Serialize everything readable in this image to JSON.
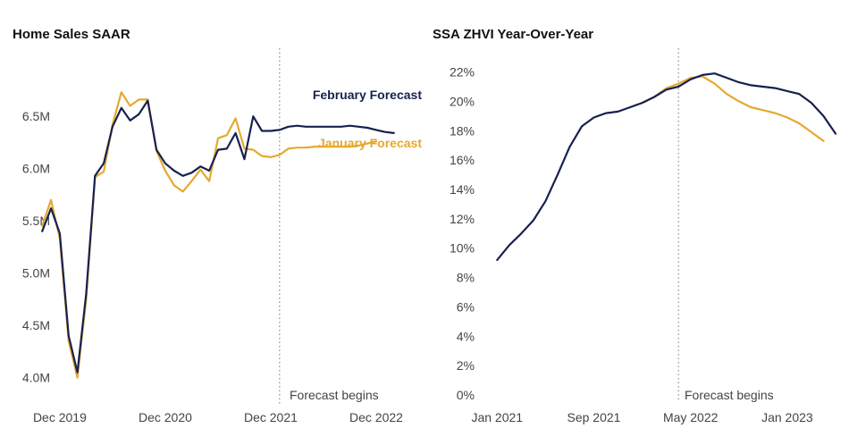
{
  "colors": {
    "february": "#17214f",
    "january": "#e5a92f",
    "forecast_line": "#8a8a8a",
    "axis": "#555555"
  },
  "chart_data": [
    {
      "type": "line",
      "title": "Home Sales SAAR",
      "xlabel": "",
      "ylabel": "",
      "x_ticks": [
        {
          "label": "Dec 2019",
          "x": 0
        },
        {
          "label": "Dec 2020",
          "x": 12
        },
        {
          "label": "Dec 2021",
          "x": 24
        },
        {
          "label": "Dec 2022",
          "x": 36
        }
      ],
      "y_ticks": [
        {
          "label": "4.0M",
          "y": 4.0
        },
        {
          "label": "4.5M",
          "y": 4.5
        },
        {
          "label": "5.0M",
          "y": 5.0
        },
        {
          "label": "5.5M",
          "y": 5.5
        },
        {
          "label": "6.0M",
          "y": 6.0
        },
        {
          "label": "6.5M",
          "y": 6.5
        }
      ],
      "xlim": [
        -0.5,
        42
      ],
      "ylim": [
        3.8,
        6.98
      ],
      "grid": false,
      "forecast_start_x": 25,
      "forecast_label": "Forecast begins",
      "series": [
        {
          "name": "February Forecast",
          "color_key": "february",
          "points": [
            [
              -2,
              5.4
            ],
            [
              -1,
              5.62
            ],
            [
              0,
              5.38
            ],
            [
              1,
              4.4
            ],
            [
              2,
              4.05
            ],
            [
              3,
              4.8
            ],
            [
              4,
              5.93
            ],
            [
              5,
              6.05
            ],
            [
              6,
              6.4
            ],
            [
              7,
              6.58
            ],
            [
              8,
              6.46
            ],
            [
              9,
              6.52
            ],
            [
              10,
              6.65
            ],
            [
              11,
              6.18
            ],
            [
              12,
              6.05
            ],
            [
              13,
              5.98
            ],
            [
              14,
              5.93
            ],
            [
              15,
              5.96
            ],
            [
              16,
              6.02
            ],
            [
              17,
              5.98
            ],
            [
              18,
              6.18
            ],
            [
              19,
              6.19
            ],
            [
              20,
              6.34
            ],
            [
              21,
              6.09
            ],
            [
              22,
              6.5
            ],
            [
              23,
              6.36
            ],
            [
              24,
              6.36
            ],
            [
              25,
              6.37
            ],
            [
              26,
              6.4
            ],
            [
              27,
              6.41
            ],
            [
              28,
              6.4
            ],
            [
              29,
              6.4
            ],
            [
              30,
              6.4
            ],
            [
              31,
              6.4
            ],
            [
              32,
              6.4
            ],
            [
              33,
              6.41
            ],
            [
              34,
              6.4
            ],
            [
              35,
              6.39
            ],
            [
              36,
              6.37
            ],
            [
              37,
              6.35
            ],
            [
              38,
              6.34
            ]
          ]
        },
        {
          "name": "January Forecast",
          "color_key": "january",
          "points": [
            [
              -2,
              5.45
            ],
            [
              -1,
              5.7
            ],
            [
              0,
              5.33
            ],
            [
              1,
              4.35
            ],
            [
              2,
              4.0
            ],
            [
              3,
              4.75
            ],
            [
              4,
              5.92
            ],
            [
              5,
              5.97
            ],
            [
              6,
              6.42
            ],
            [
              7,
              6.73
            ],
            [
              8,
              6.6
            ],
            [
              9,
              6.66
            ],
            [
              10,
              6.66
            ],
            [
              11,
              6.17
            ],
            [
              12,
              5.98
            ],
            [
              13,
              5.84
            ],
            [
              14,
              5.78
            ],
            [
              15,
              5.88
            ],
            [
              16,
              5.99
            ],
            [
              17,
              5.88
            ],
            [
              18,
              6.29
            ],
            [
              19,
              6.32
            ],
            [
              20,
              6.48
            ],
            [
              21,
              6.19
            ],
            [
              22,
              6.18
            ],
            [
              23,
              6.12
            ],
            [
              24,
              6.11
            ],
            [
              25,
              6.13
            ],
            [
              26,
              6.19
            ],
            [
              27,
              6.2
            ],
            [
              28,
              6.2
            ],
            [
              29,
              6.21
            ],
            [
              30,
              6.21
            ],
            [
              31,
              6.21
            ],
            [
              32,
              6.21
            ],
            [
              33,
              6.21
            ],
            [
              34,
              6.22
            ],
            [
              35,
              6.24
            ],
            [
              36,
              6.26
            ]
          ]
        }
      ]
    },
    {
      "type": "line",
      "title": "SSA ZHVI Year-Over-Year",
      "xlabel": "",
      "ylabel": "",
      "x_ticks": [
        {
          "label": "Jan 2021",
          "x": 0
        },
        {
          "label": "Sep 2021",
          "x": 8
        },
        {
          "label": "May 2022",
          "x": 16
        },
        {
          "label": "Jan 2023",
          "x": 24
        }
      ],
      "y_ticks": [
        {
          "label": "0%",
          "y": 0
        },
        {
          "label": "2%",
          "y": 2
        },
        {
          "label": "4%",
          "y": 4
        },
        {
          "label": "6%",
          "y": 6
        },
        {
          "label": "8%",
          "y": 8
        },
        {
          "label": "10%",
          "y": 10
        },
        {
          "label": "12%",
          "y": 12
        },
        {
          "label": "14%",
          "y": 14
        },
        {
          "label": "16%",
          "y": 16
        },
        {
          "label": "18%",
          "y": 18
        },
        {
          "label": "20%",
          "y": 20
        },
        {
          "label": "22%",
          "y": 22
        }
      ],
      "xlim": [
        -1.5,
        28
      ],
      "ylim": [
        0,
        22.4
      ],
      "grid": false,
      "forecast_start_x": 15,
      "forecast_label": "Forecast begins",
      "series": [
        {
          "name": "February Forecast",
          "color_key": "february",
          "points": [
            [
              0,
              9.2
            ],
            [
              1,
              10.2
            ],
            [
              2,
              11.0
            ],
            [
              3,
              11.9
            ],
            [
              4,
              13.2
            ],
            [
              5,
              15.0
            ],
            [
              6,
              16.9
            ],
            [
              7,
              18.3
            ],
            [
              8,
              18.9
            ],
            [
              9,
              19.2
            ],
            [
              10,
              19.3
            ],
            [
              11,
              19.6
            ],
            [
              12,
              19.9
            ],
            [
              13,
              20.3
            ],
            [
              14,
              20.8
            ],
            [
              15,
              21.0
            ],
            [
              16,
              21.5
            ],
            [
              17,
              21.8
            ],
            [
              18,
              21.9
            ],
            [
              19,
              21.6
            ],
            [
              20,
              21.3
            ],
            [
              21,
              21.1
            ],
            [
              22,
              21.0
            ],
            [
              23,
              20.9
            ],
            [
              24,
              20.7
            ],
            [
              25,
              20.5
            ],
            [
              26,
              19.9
            ],
            [
              27,
              19.0
            ],
            [
              28,
              17.8
            ]
          ]
        },
        {
          "name": "January Forecast",
          "color_key": "january",
          "points": [
            [
              11,
              19.6
            ],
            [
              12,
              19.9
            ],
            [
              13,
              20.3
            ],
            [
              14,
              20.9
            ],
            [
              15,
              21.2
            ],
            [
              16,
              21.6
            ],
            [
              17,
              21.7
            ],
            [
              18,
              21.2
            ],
            [
              19,
              20.5
            ],
            [
              20,
              20.0
            ],
            [
              21,
              19.6
            ],
            [
              22,
              19.4
            ],
            [
              23,
              19.2
            ],
            [
              24,
              18.9
            ],
            [
              25,
              18.5
            ],
            [
              26,
              17.9
            ],
            [
              27,
              17.3
            ]
          ]
        }
      ]
    }
  ]
}
